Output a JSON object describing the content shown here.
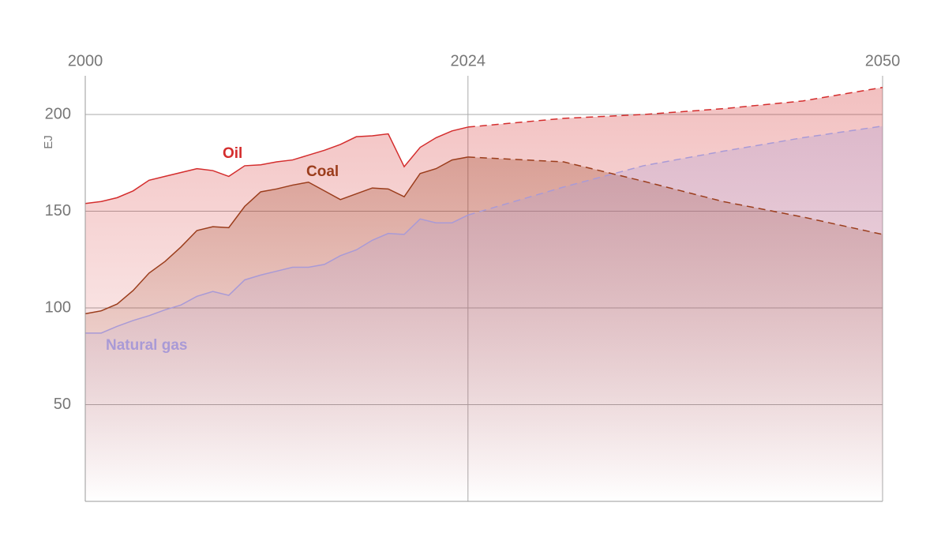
{
  "chart_data": {
    "type": "area",
    "y_label": "EJ",
    "x": [
      2000,
      2001,
      2002,
      2003,
      2004,
      2005,
      2006,
      2007,
      2008,
      2009,
      2010,
      2011,
      2012,
      2013,
      2014,
      2015,
      2016,
      2017,
      2018,
      2019,
      2020,
      2021,
      2022,
      2023,
      2024,
      2030,
      2035,
      2040,
      2045,
      2050
    ],
    "projection_start": 2024,
    "xlim": [
      2000,
      2050
    ],
    "xticks": [
      2000,
      2024,
      2050
    ],
    "ylim": [
      0,
      220
    ],
    "yticks": [
      50,
      100,
      150,
      200
    ],
    "grid": true,
    "series": [
      {
        "name": "Oil",
        "color": "#d42d2d",
        "values": [
          154,
          155,
          157,
          160.5,
          166,
          168,
          170,
          172,
          171,
          168,
          173.5,
          174,
          175.5,
          176.5,
          179,
          181.5,
          184.5,
          188.5,
          189,
          190,
          173,
          183,
          188,
          191.5,
          193.5,
          198,
          200,
          203,
          207,
          214
        ]
      },
      {
        "name": "Coal",
        "color": "#9b3d1c",
        "values": [
          97,
          98.5,
          102,
          109,
          118,
          124,
          131.5,
          140,
          142,
          141.5,
          152.5,
          160,
          161.5,
          163.5,
          165,
          160.5,
          156,
          159,
          162,
          161.5,
          157.5,
          169.5,
          172,
          176.5,
          178,
          175.5,
          165.5,
          155,
          147,
          138
        ]
      },
      {
        "name": "Natural gas",
        "color": "#a99ad6",
        "values": [
          87,
          87,
          90.5,
          93.5,
          96,
          99,
          101.5,
          106,
          108.5,
          106.5,
          114.5,
          117,
          119,
          121,
          121,
          122.5,
          127,
          130,
          135,
          138.5,
          138,
          146,
          144,
          144,
          148,
          162.5,
          173.5,
          181,
          188,
          194
        ]
      }
    ]
  }
}
